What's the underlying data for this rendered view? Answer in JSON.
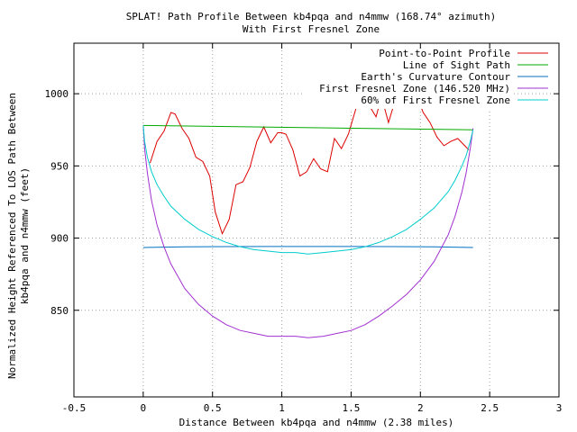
{
  "chart_data": {
    "type": "line",
    "title": "SPLAT! Path Profile Between kb4pqa and n4mmw (168.74° azimuth)",
    "subtitle": "With First Fresnel Zone",
    "xlabel": "Distance Between kb4pqa and n4mmw (2.38 miles)",
    "ylabel_line1": "Normalized Height Referenced To LOS Path Between",
    "ylabel_line2": "kb4pqa and n4mmw (feet)",
    "xlim": [
      -0.5,
      3
    ],
    "ylim": [
      790,
      1035
    ],
    "xticks": [
      -0.5,
      0,
      0.5,
      1,
      1.5,
      2,
      2.5,
      3
    ],
    "xtick_labels": [
      "-0.5",
      "0",
      "0.5",
      "1",
      "1.5",
      "2",
      "2.5",
      "3"
    ],
    "yticks": [
      850,
      900,
      950,
      1000
    ],
    "ytick_labels": [
      "850",
      "900",
      "950",
      "1000"
    ],
    "grid": true,
    "legend_position": "top-right",
    "series": [
      {
        "name": "Point-to-Point Profile",
        "color": "#dd0000",
        "x": [
          0.05,
          0.1,
          0.15,
          0.2,
          0.23,
          0.28,
          0.33,
          0.38,
          0.43,
          0.48,
          0.52,
          0.57,
          0.62,
          0.67,
          0.72,
          0.77,
          0.82,
          0.87,
          0.92,
          0.97,
          1.0,
          1.03,
          1.08,
          1.13,
          1.18,
          1.23,
          1.28,
          1.33,
          1.38,
          1.43,
          1.48,
          1.53,
          1.58,
          1.63,
          1.68,
          1.72,
          1.77,
          1.82,
          1.87,
          1.92,
          1.97,
          2.02,
          2.07,
          2.12,
          2.17,
          2.22,
          2.27,
          2.32,
          2.35
        ],
        "y": [
          952,
          967,
          974,
          987,
          986,
          976,
          969,
          956,
          953,
          943,
          918,
          903,
          913,
          937,
          939,
          949,
          967,
          977,
          966,
          973,
          973,
          972,
          961,
          943,
          946,
          955,
          948,
          946,
          969,
          962,
          972,
          988,
          1004,
          992,
          984,
          998,
          980,
          996,
          993,
          995,
          999,
          987,
          980,
          970,
          964,
          967,
          969,
          964,
          961
        ]
      },
      {
        "name": "Line of Sight Path",
        "color": "#00aa00",
        "x": [
          0,
          2.38
        ],
        "y": [
          978,
          975
        ]
      },
      {
        "name": "Earth's Curvature Contour",
        "color": "#0070c0",
        "x": [
          0,
          0.3,
          0.6,
          0.9,
          1.2,
          1.5,
          1.8,
          2.1,
          2.38
        ],
        "y": [
          893.5,
          893.9,
          894.1,
          894.2,
          894.2,
          894.2,
          894.1,
          893.9,
          893.5
        ]
      },
      {
        "name": "First Fresnel Zone (146.520 MHz)",
        "color": "#a030d0",
        "x": [
          0.0,
          0.01,
          0.03,
          0.06,
          0.1,
          0.15,
          0.2,
          0.3,
          0.4,
          0.5,
          0.6,
          0.7,
          0.8,
          0.9,
          1.0,
          1.1,
          1.19,
          1.3,
          1.4,
          1.5,
          1.6,
          1.7,
          1.8,
          1.9,
          2.0,
          2.1,
          2.2,
          2.25,
          2.3,
          2.33,
          2.36,
          2.38
        ],
        "y": [
          978,
          962,
          945,
          926,
          909,
          894,
          882,
          865,
          854,
          846,
          840,
          836,
          834,
          832,
          832,
          832,
          831,
          832,
          834,
          836,
          840,
          846,
          853,
          861,
          871,
          884,
          902,
          915,
          932,
          945,
          962,
          976
        ]
      },
      {
        "name": "60% of First Fresnel Zone",
        "color": "#00cccc",
        "x": [
          0.0,
          0.01,
          0.03,
          0.06,
          0.1,
          0.15,
          0.2,
          0.3,
          0.4,
          0.5,
          0.6,
          0.7,
          0.8,
          0.9,
          1.0,
          1.1,
          1.19,
          1.3,
          1.4,
          1.5,
          1.6,
          1.7,
          1.8,
          1.9,
          2.0,
          2.1,
          2.2,
          2.25,
          2.3,
          2.33,
          2.36,
          2.38
        ],
        "y": [
          978,
          967,
          956,
          946,
          937,
          929,
          922,
          913,
          906,
          901,
          897,
          894,
          892,
          891,
          890,
          890,
          889,
          890,
          891,
          892,
          894,
          897,
          901,
          906,
          913,
          921,
          932,
          940,
          950,
          957,
          967,
          975
        ]
      }
    ]
  }
}
